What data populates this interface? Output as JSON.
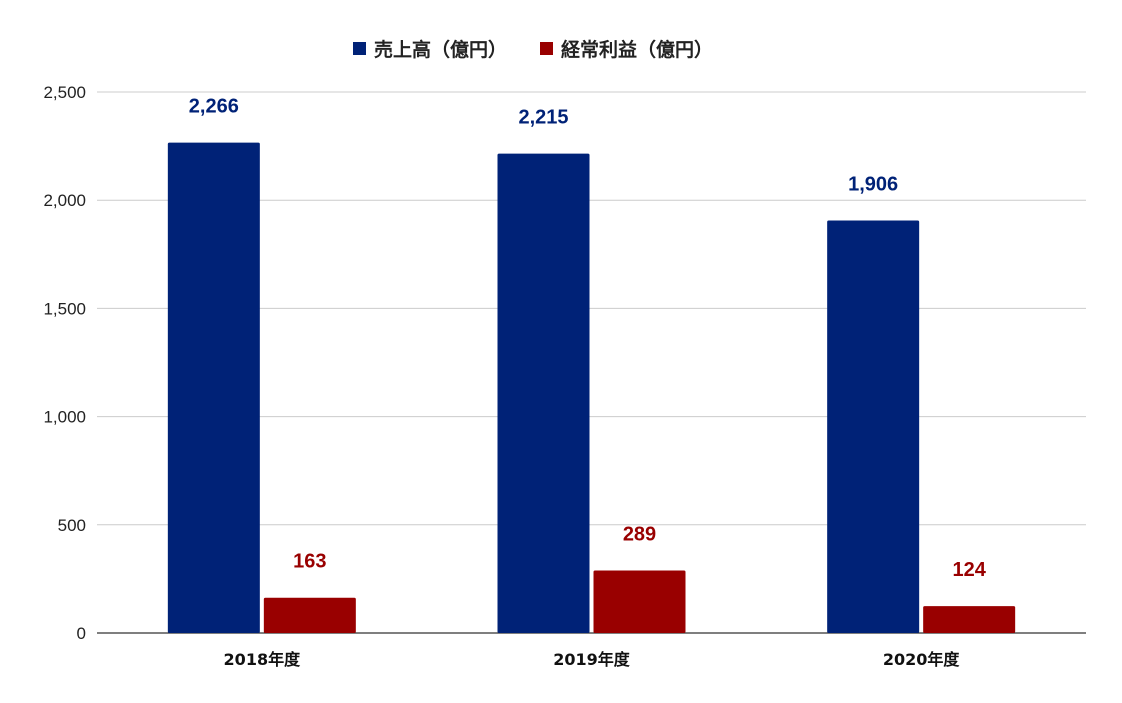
{
  "colors": {
    "series_0": "#002277",
    "series_1": "#990000",
    "grid": "#cccccc",
    "axis": "#333333"
  },
  "chart_data": {
    "type": "bar",
    "categories": [
      "2018年度",
      "2019年度",
      "2020年度"
    ],
    "series": [
      {
        "name": "売上高（億円）",
        "values": [
          2266,
          2215,
          1906
        ],
        "labels": [
          "2,266",
          "2,215",
          "1,906"
        ]
      },
      {
        "name": "経常利益（億円）",
        "values": [
          163,
          289,
          124
        ],
        "labels": [
          "163",
          "289",
          "124"
        ]
      }
    ],
    "ylim": [
      0,
      2500
    ],
    "yticks": [
      0,
      500,
      1000,
      1500,
      2000,
      2500
    ],
    "ytick_labels": [
      "0",
      "500",
      "1,000",
      "1,500",
      "2,000",
      "2,500"
    ],
    "grid": true,
    "legend_position": "top-center",
    "title": "",
    "xlabel": "",
    "ylabel": ""
  }
}
